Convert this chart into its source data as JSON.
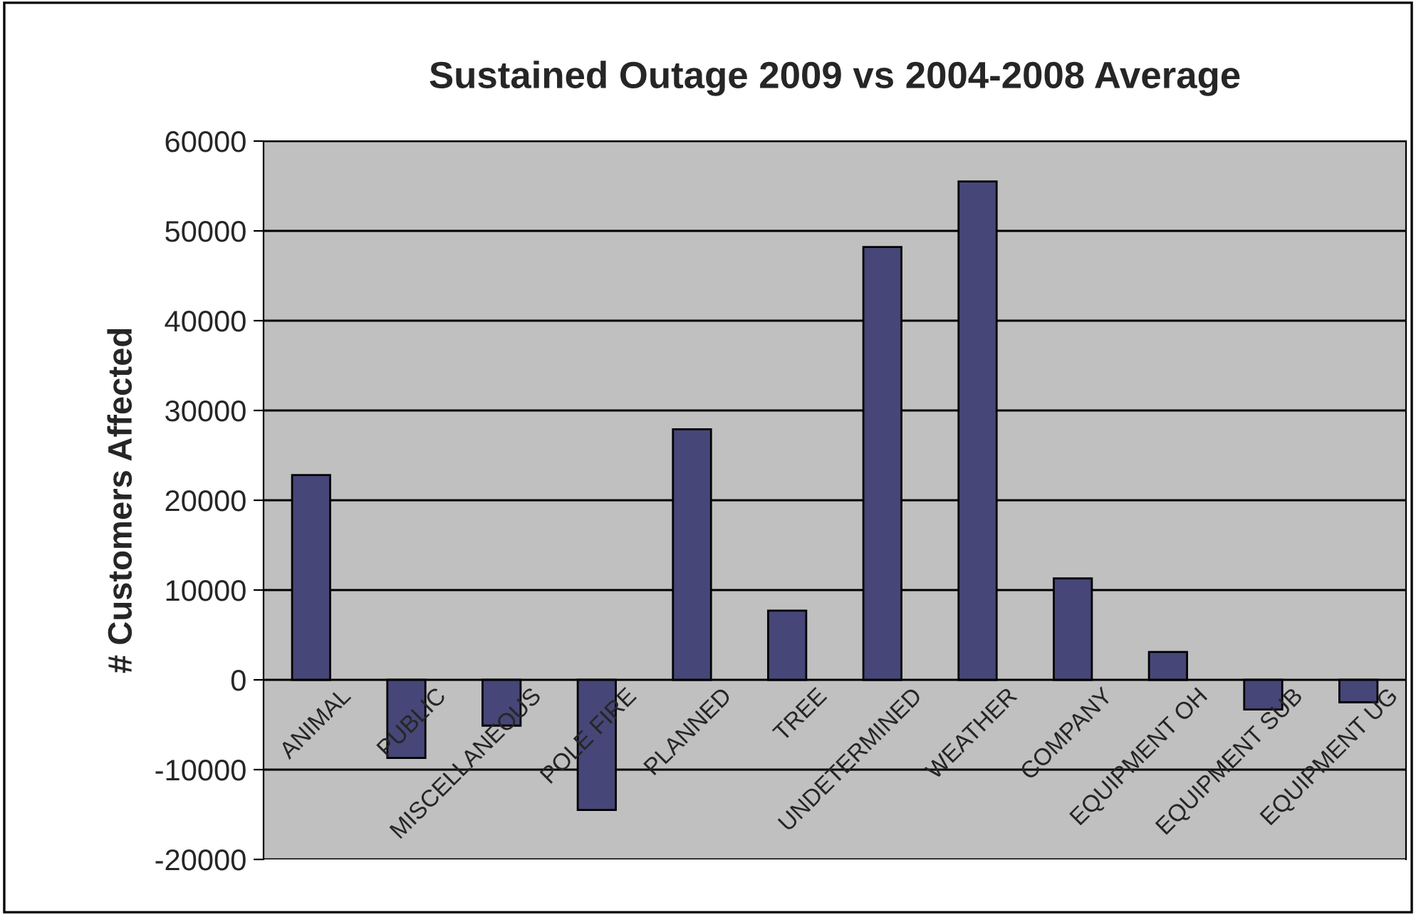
{
  "chart_data": {
    "type": "bar",
    "title": "Sustained Outage 2009 vs 2004-2008 Average",
    "ylabel": "# Customers Affected",
    "categories": [
      "ANIMAL",
      "PUBLIC",
      "MISCELLANEOUS",
      "POLE FIRE",
      "PLANNED",
      "TREE",
      "UNDETERMINED",
      "WEATHER",
      "COMPANY",
      "EQUIPMENT OH",
      "EQUIPMENT SUB",
      "EQUIPMENT UG"
    ],
    "values": [
      22800,
      -8700,
      -5100,
      -14500,
      27900,
      7700,
      48200,
      55500,
      11300,
      3100,
      -3300,
      -2500
    ],
    "color": "#464678",
    "ylim": [
      -20000,
      60000
    ],
    "yticks": [
      -20000,
      -10000,
      0,
      10000,
      20000,
      30000,
      40000,
      50000,
      60000
    ],
    "grid": "y",
    "legend": false
  }
}
